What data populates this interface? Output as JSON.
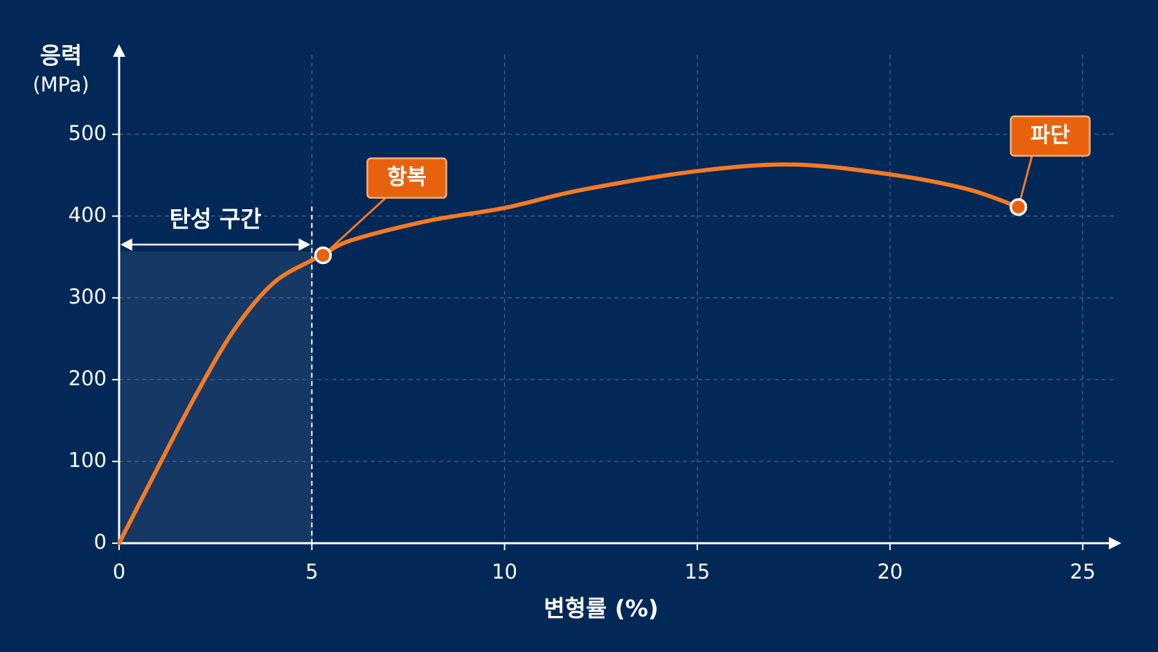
{
  "chart_data": {
    "type": "line",
    "y_label": "응력",
    "y_unit": "(MPa)",
    "x_label": "변형률 (%)",
    "x": [
      0,
      1,
      2,
      3,
      4,
      5,
      5.29,
      6,
      8,
      10,
      12,
      15,
      17.5,
      20,
      22,
      23.33
    ],
    "series": [
      {
        "color": "#f47a24",
        "values": [
          0,
          92,
          182,
          262,
          318,
          346,
          352,
          370,
          394,
          410,
          432,
          455,
          463,
          451,
          433,
          411
        ]
      }
    ],
    "xlim": [
      0,
      26
    ],
    "ylim": [
      0,
      610
    ],
    "xticks": [
      0,
      5,
      10,
      15,
      20,
      25
    ],
    "yticks": [
      0,
      100,
      200,
      300,
      400,
      500
    ],
    "grid": true,
    "annotations": [
      {
        "text": "항복",
        "x": 5.29,
        "y": 352
      },
      {
        "text": "파단",
        "x": 23.33,
        "y": 411
      }
    ],
    "region": {
      "label": "탄성 구간",
      "x": [
        0,
        5
      ]
    }
  }
}
